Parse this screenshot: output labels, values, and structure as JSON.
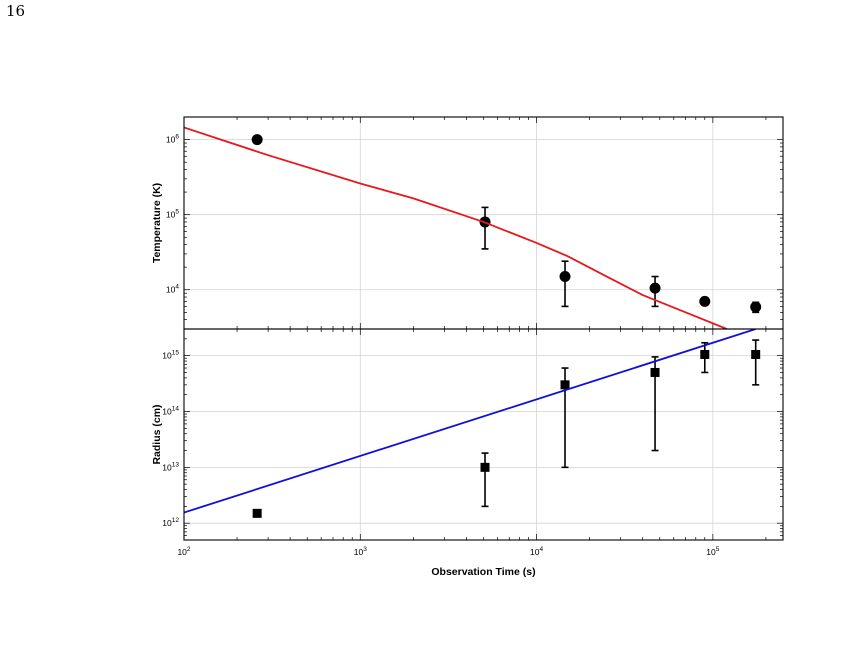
{
  "page": {
    "number": "16"
  },
  "chart_data": [
    {
      "type": "scatter",
      "title": "",
      "ylabel": "Temperature (K)",
      "xlabel": "",
      "xscale": "log",
      "yscale": "log",
      "xlim": [
        100,
        250000
      ],
      "ylim": [
        3000,
        2000000
      ],
      "grid": true,
      "x_ticks": [
        {
          "value": 100,
          "base": "10",
          "exp": "2"
        },
        {
          "value": 1000,
          "base": "10",
          "exp": "3"
        },
        {
          "value": 10000,
          "base": "10",
          "exp": "4"
        },
        {
          "value": 100000,
          "base": "10",
          "exp": "5"
        }
      ],
      "y_ticks": [
        {
          "value": 10000,
          "base": "10",
          "exp": "4"
        },
        {
          "value": 100000,
          "base": "10",
          "exp": "5"
        },
        {
          "value": 1000000,
          "base": "10",
          "exp": "6"
        }
      ],
      "series": [
        {
          "kind": "points",
          "marker": "circle",
          "color": "#000000",
          "points": [
            {
              "x": 260,
              "y": 1000000
            },
            {
              "x": 5100,
              "y": 80000,
              "lo": 35000,
              "hi": 125000
            },
            {
              "x": 14500,
              "y": 15000,
              "lo": 6000,
              "hi": 24000
            },
            {
              "x": 47000,
              "y": 10500,
              "lo": 6000,
              "hi": 15000
            },
            {
              "x": 90000,
              "y": 7000,
              "lo": 6300,
              "hi": 7700
            },
            {
              "x": 175000,
              "y": 5900,
              "lo": 5000,
              "hi": 6800
            }
          ]
        },
        {
          "kind": "line",
          "color": "#e8171b",
          "points": [
            {
              "x": 100,
              "y": 1450000
            },
            {
              "x": 300,
              "y": 620000
            },
            {
              "x": 1000,
              "y": 260000
            },
            {
              "x": 2000,
              "y": 165000
            },
            {
              "x": 5000,
              "y": 80000
            },
            {
              "x": 10000,
              "y": 42000
            },
            {
              "x": 15000,
              "y": 28000
            },
            {
              "x": 25000,
              "y": 15000
            },
            {
              "x": 40000,
              "y": 8500
            },
            {
              "x": 70000,
              "y": 5000
            },
            {
              "x": 120000,
              "y": 3000
            }
          ]
        }
      ]
    },
    {
      "type": "scatter",
      "title": "",
      "ylabel": "Radius (cm)",
      "xlabel": "Observation Time (s)",
      "xscale": "log",
      "yscale": "log",
      "xlim": [
        100,
        250000
      ],
      "ylim": [
        500000000000,
        3000000000000000
      ],
      "grid": true,
      "x_ticks": [
        {
          "value": 100,
          "base": "10",
          "exp": "2"
        },
        {
          "value": 1000,
          "base": "10",
          "exp": "3"
        },
        {
          "value": 10000,
          "base": "10",
          "exp": "4"
        },
        {
          "value": 100000,
          "base": "10",
          "exp": "5"
        }
      ],
      "y_ticks": [
        {
          "value": 1000000000000,
          "base": "10",
          "exp": "12"
        },
        {
          "value": 10000000000000,
          "base": "10",
          "exp": "13"
        },
        {
          "value": 100000000000000,
          "base": "10",
          "exp": "14"
        },
        {
          "value": 1000000000000000,
          "base": "10",
          "exp": "15"
        }
      ],
      "series": [
        {
          "kind": "points",
          "marker": "square",
          "color": "#000000",
          "points": [
            {
              "x": 260,
              "y": 1500000000000
            },
            {
              "x": 5100,
              "y": 10000000000000,
              "lo": 2000000000000,
              "hi": 18000000000000
            },
            {
              "x": 14500,
              "y": 300000000000000,
              "lo": 10000000000000,
              "hi": 600000000000000
            },
            {
              "x": 47000,
              "y": 500000000000000,
              "lo": 20000000000000,
              "hi": 950000000000000
            },
            {
              "x": 90000,
              "y": 1050000000000000,
              "lo": 500000000000000,
              "hi": 1700000000000000
            },
            {
              "x": 175000,
              "y": 1050000000000000,
              "lo": 300000000000000,
              "hi": 1900000000000000
            }
          ]
        },
        {
          "kind": "line",
          "color": "#1010d8",
          "points": [
            {
              "x": 100,
              "y": 1550000000000
            },
            {
              "x": 175000,
              "y": 3000000000000000
            }
          ]
        }
      ]
    }
  ]
}
